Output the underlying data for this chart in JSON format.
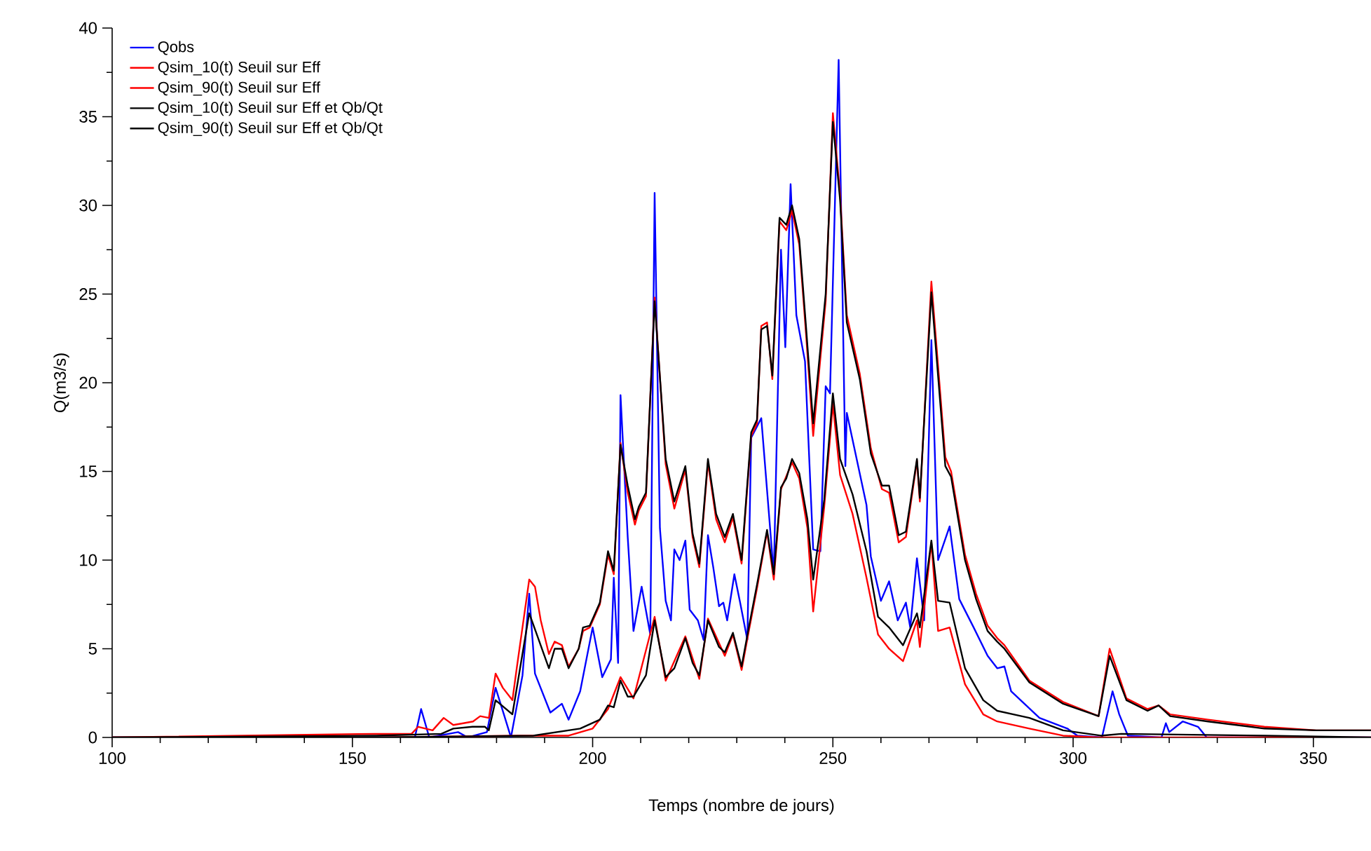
{
  "chart_data": {
    "type": "line",
    "xlabel": "Temps (nombre de jours)",
    "ylabel": "Q(m3/s)",
    "xlim": [
      100,
      362
    ],
    "ylim": [
      0,
      40
    ],
    "xticks": [
      100,
      150,
      200,
      250,
      300,
      350
    ],
    "yticks": [
      0,
      5,
      10,
      15,
      20,
      25,
      30,
      35,
      40
    ],
    "legend": "top left",
    "grid": false,
    "marker": "none",
    "line_style": "solid",
    "series": [
      {
        "name": "Qobs",
        "color": "#0000ff",
        "x": [
          100,
          163,
          164.3,
          166,
          172,
          174,
          178,
          179.8,
          181.3,
          183,
          185.4,
          186.8,
          188,
          191.2,
          193.6,
          195,
          197.4,
          200,
          202,
          203.8,
          204.4,
          205.3,
          205.8,
          207.3,
          208.5,
          210.2,
          212,
          212.9,
          214,
          215.2,
          216.3,
          217,
          218.1,
          219.3,
          220.2,
          221.9,
          223.1,
          224,
          225.1,
          226.3,
          227.2,
          228,
          229.5,
          230.7,
          232.2,
          233,
          235.1,
          237.7,
          239.2,
          240.1,
          241.2,
          242.4,
          244.2,
          245.9,
          247.4,
          248.5,
          249.4,
          251.2,
          252.6,
          252.9,
          257,
          257.9,
          260,
          261.7,
          263.5,
          265.2,
          266.1,
          267.5,
          269,
          270.5,
          271.9,
          274.3,
          276.3,
          279.3,
          282.2,
          284.2,
          285.7,
          287.1,
          293,
          298.8,
          300.9,
          306,
          308.2,
          309.6,
          311.4,
          318.4,
          319.3,
          320,
          322.8,
          326,
          327.8,
          362
        ],
        "values": [
          0,
          0,
          1.6,
          0,
          0.3,
          0,
          0.3,
          2.8,
          1.5,
          0,
          3.5,
          8.1,
          3.6,
          1.4,
          1.9,
          1.0,
          2.6,
          6.2,
          3.4,
          4.4,
          9.0,
          4.2,
          19.3,
          11.3,
          6.0,
          8.5,
          5.8,
          30.7,
          11.8,
          7.7,
          6.6,
          10.6,
          10.0,
          11.1,
          7.2,
          6.6,
          5.5,
          11.4,
          9.6,
          7.4,
          7.6,
          6.6,
          9.2,
          7.6,
          5.5,
          16.9,
          18.0,
          9.2,
          27.5,
          22.0,
          31.2,
          23.8,
          21.2,
          10.6,
          10.5,
          19.8,
          19.4,
          38.2,
          15.3,
          18.3,
          13.1,
          10.2,
          7.7,
          8.8,
          6.6,
          7.6,
          6.2,
          10.1,
          6.6,
          22.4,
          10.0,
          11.9,
          7.8,
          6.2,
          4.6,
          3.9,
          4.0,
          2.6,
          1.1,
          0.5,
          0.1,
          0,
          2.6,
          1.3,
          0.1,
          0,
          0.8,
          0.3,
          0.9,
          0.6,
          0,
          0
        ]
      },
      {
        "name": "Qsim_10(t) Seuil sur Eff",
        "color": "#ff0000",
        "x": [
          100,
          155,
          185,
          195,
          200,
          203.2,
          205.8,
          208.5,
          212.9,
          215.2,
          219.3,
          222.2,
          224,
          227.5,
          229.2,
          231,
          232.5,
          234.2,
          236.3,
          237.7,
          239.2,
          241.5,
          243,
          244.7,
          245.9,
          248.2,
          250,
          251.5,
          254.1,
          257,
          259.4,
          261.7,
          264.6,
          267.5,
          268.1,
          270.5,
          271.9,
          274.3,
          277.5,
          281.3,
          284.2,
          290.9,
          297.9,
          305,
          362
        ],
        "values": [
          0,
          0,
          0.1,
          0.1,
          0.5,
          1.6,
          3.4,
          2.2,
          6.8,
          3.2,
          5.7,
          3.3,
          6.7,
          4.6,
          5.8,
          3.8,
          6.0,
          8.4,
          11.6,
          8.9,
          14.0,
          15.5,
          14.6,
          11.8,
          7.1,
          13.0,
          18.8,
          14.8,
          12.6,
          9.0,
          5.8,
          5.0,
          4.3,
          6.6,
          5.1,
          11.0,
          6.0,
          6.2,
          3.0,
          1.3,
          0.9,
          0.5,
          0.1,
          0,
          0
        ]
      },
      {
        "name": "Qsim_90(t) Seuil sur Eff",
        "color": "#ff0000",
        "x": [
          100,
          154.7,
          162.3,
          163.7,
          166.7,
          169,
          171,
          173.1,
          175.1,
          176.6,
          178.4,
          179.8,
          181.3,
          183.3,
          184.2,
          186.8,
          188,
          189.2,
          190.9,
          192.1,
          193.6,
          195,
          197.1,
          198,
          199.4,
          201.5,
          203.2,
          204.4,
          205.8,
          207.3,
          208.8,
          209.6,
          211.1,
          212.9,
          215.2,
          217,
          219.3,
          220.8,
          222.2,
          224,
          225.7,
          227.5,
          229.2,
          231,
          233,
          234.2,
          235.1,
          236.3,
          237.4,
          238.9,
          240.3,
          241.5,
          243,
          244.4,
          245.9,
          248.5,
          250,
          251.5,
          252.9,
          255.6,
          257.9,
          260.2,
          261.7,
          263.7,
          265.2,
          267.5,
          268.1,
          270.5,
          273.4,
          274.6,
          277.5,
          279.8,
          282.2,
          284.2,
          285.7,
          290.9,
          297.9,
          305.3,
          307.6,
          311.1,
          315.5,
          317.8,
          320.2,
          328.1,
          339.8,
          350.6,
          362
        ],
        "values": [
          0,
          0.2,
          0.2,
          0.6,
          0.4,
          1.1,
          0.7,
          0.8,
          0.9,
          1.2,
          1.1,
          3.6,
          2.8,
          2.1,
          3.9,
          8.9,
          8.5,
          6.6,
          4.7,
          5.4,
          5.2,
          4.0,
          5.0,
          6.0,
          6.2,
          7.5,
          10.3,
          9.2,
          16.6,
          13.8,
          12.0,
          12.8,
          13.6,
          24.8,
          15.4,
          12.9,
          15.1,
          11.3,
          9.6,
          15.5,
          12.3,
          11.0,
          12.4,
          9.8,
          17.0,
          17.7,
          23.2,
          23.4,
          20.2,
          29.1,
          28.6,
          29.7,
          27.8,
          22.8,
          17.0,
          24.6,
          35.2,
          30.6,
          23.8,
          20.5,
          16.3,
          14.0,
          13.8,
          11.0,
          11.3,
          15.6,
          13.3,
          25.7,
          15.8,
          15.0,
          10.3,
          8.1,
          6.3,
          5.6,
          5.2,
          3.2,
          2.0,
          1.2,
          5.0,
          2.2,
          1.6,
          1.8,
          1.3,
          1.0,
          0.6,
          0.4,
          0.4
        ]
      },
      {
        "name": "Qsim_10(t) Seuil sur Eff et Qb/Qt",
        "color": "#000000",
        "x": [
          100,
          155,
          187.7,
          197.4,
          201.5,
          203.2,
          204.4,
          205.8,
          207.3,
          208.5,
          211.1,
          212.9,
          215.2,
          217,
          219.3,
          220.8,
          222.2,
          224,
          226.3,
          227.5,
          229.2,
          231,
          232.5,
          234.2,
          236.3,
          237.7,
          239.2,
          240.3,
          241.5,
          243,
          244.7,
          245.9,
          248.2,
          250,
          251.5,
          254.1,
          257,
          259.4,
          261.7,
          264.6,
          267.5,
          268.1,
          270.5,
          271.9,
          274.3,
          277.5,
          281.3,
          284.2,
          290.9,
          297.9,
          305.8,
          310,
          340,
          362
        ],
        "values": [
          0,
          0,
          0.1,
          0.5,
          1.0,
          1.8,
          1.7,
          3.2,
          2.3,
          2.3,
          3.5,
          6.6,
          3.4,
          3.9,
          5.6,
          4.2,
          3.5,
          6.6,
          5.1,
          4.8,
          5.9,
          4.0,
          6.2,
          8.6,
          11.7,
          9.2,
          14.1,
          14.6,
          15.7,
          14.9,
          12.3,
          8.9,
          13.4,
          19.4,
          15.7,
          13.7,
          10.5,
          6.8,
          6.2,
          5.2,
          7.0,
          6.2,
          11.1,
          7.7,
          7.6,
          3.9,
          2.1,
          1.5,
          1.1,
          0.4,
          0.1,
          0.2,
          0.1,
          0
        ]
      },
      {
        "name": "Qsim_90(t) Seuil sur Eff et Qb/Qt",
        "color": "#000000",
        "x": [
          100,
          155,
          168.5,
          171,
          175,
          177.6,
          178.4,
          179.8,
          183.3,
          186.8,
          190.9,
          192.1,
          193.6,
          195,
          197.1,
          198,
          199.4,
          201.5,
          203.2,
          204.4,
          205.8,
          207.3,
          208.8,
          209.6,
          211.1,
          212.9,
          215.2,
          217,
          219.3,
          220.8,
          222.2,
          224,
          225.7,
          227.5,
          229.2,
          231,
          233,
          234.2,
          235.1,
          236.3,
          237.4,
          238.9,
          240.3,
          241.5,
          243,
          244.4,
          245.9,
          248.5,
          250,
          251.5,
          252.9,
          255.6,
          257.9,
          260.2,
          261.7,
          263.7,
          265.2,
          267.5,
          268.1,
          270.5,
          273.4,
          274.6,
          277.5,
          279.8,
          282.2,
          284.2,
          285.7,
          290.9,
          297.9,
          305.3,
          307.6,
          311.1,
          315.5,
          317.8,
          320.2,
          328.1,
          339.8,
          350.6,
          362
        ],
        "values": [
          0,
          0.1,
          0.2,
          0.5,
          0.6,
          0.6,
          0.4,
          2.1,
          1.3,
          7.0,
          3.9,
          5.0,
          5.0,
          3.9,
          5.0,
          6.2,
          6.3,
          7.6,
          10.5,
          9.4,
          16.5,
          14.2,
          12.3,
          13.0,
          13.8,
          24.6,
          15.7,
          13.3,
          15.3,
          11.5,
          9.8,
          15.7,
          12.6,
          11.3,
          12.6,
          10.0,
          17.2,
          17.9,
          23.0,
          23.2,
          20.4,
          29.3,
          28.9,
          30.0,
          28.1,
          23.2,
          17.7,
          25.0,
          34.7,
          30.3,
          23.4,
          20.2,
          16.0,
          14.2,
          14.2,
          11.4,
          11.6,
          15.7,
          13.5,
          25.1,
          15.3,
          14.7,
          10.0,
          7.8,
          6.0,
          5.4,
          5.0,
          3.1,
          1.9,
          1.2,
          4.6,
          2.1,
          1.5,
          1.8,
          1.2,
          0.9,
          0.5,
          0.4,
          0.4
        ]
      }
    ]
  }
}
